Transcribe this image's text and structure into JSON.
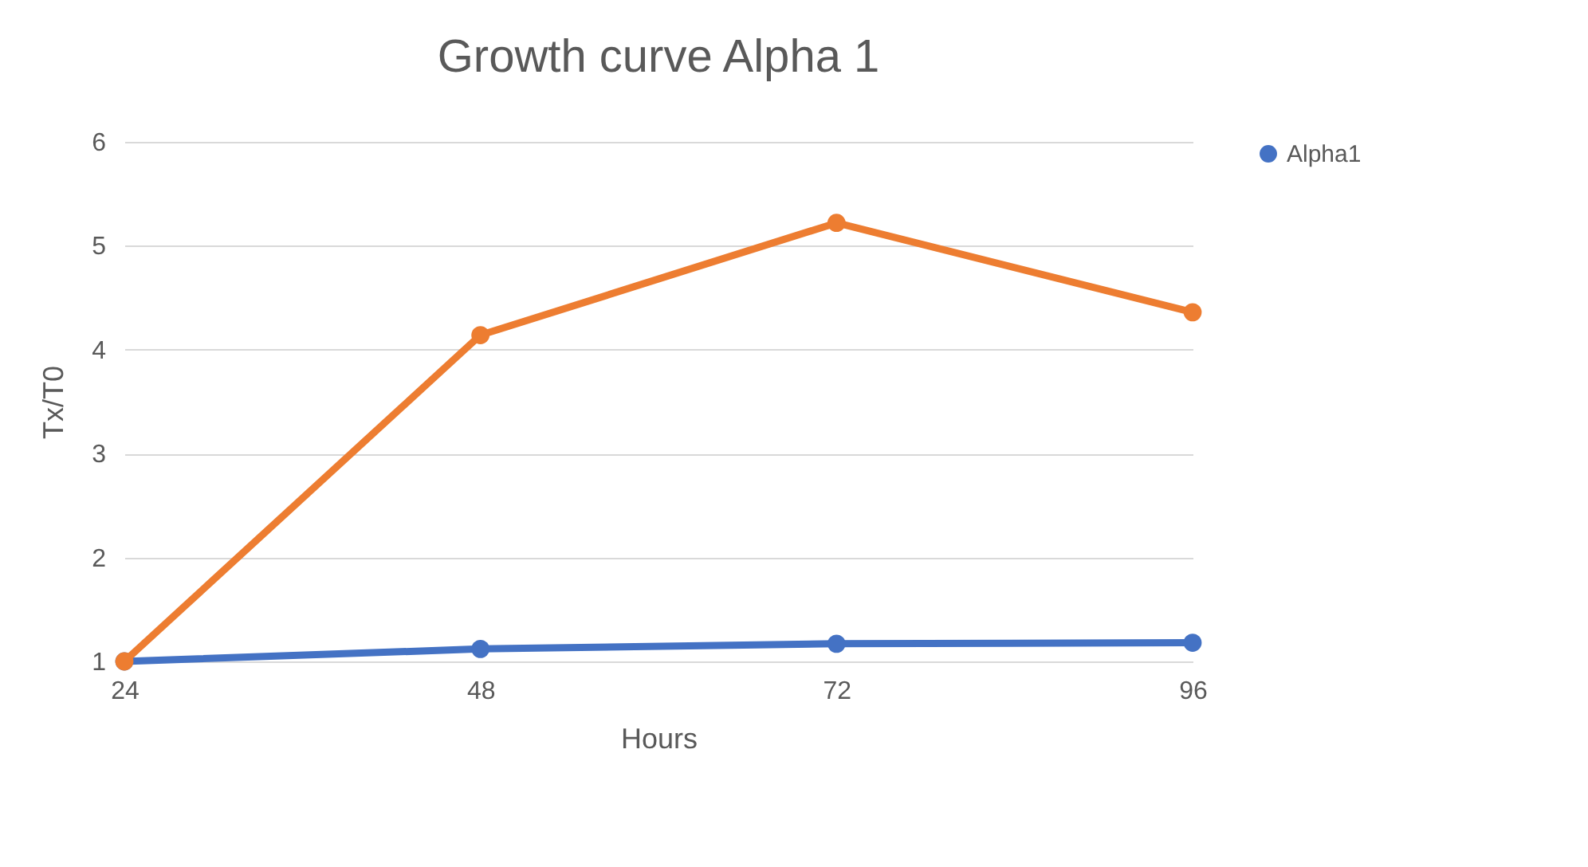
{
  "chart_data": {
    "type": "line",
    "title": "Growth curve  Alpha 1",
    "xlabel": "Hours",
    "ylabel": "Tx/T0",
    "categories": [
      "24",
      "48",
      "72",
      "96"
    ],
    "series": [
      {
        "name": "Alpha1",
        "color": "#4472c4",
        "values": [
          1.0,
          1.12,
          1.17,
          1.18
        ]
      },
      {
        "color": "#ed7d31",
        "values": [
          1.0,
          4.14,
          5.22,
          4.36
        ]
      }
    ],
    "ylim": [
      1,
      6
    ],
    "yticks": [
      1,
      2,
      3,
      4,
      5,
      6
    ],
    "grid": "y",
    "legend": "right",
    "marker": "circle",
    "line_style": "solid"
  }
}
